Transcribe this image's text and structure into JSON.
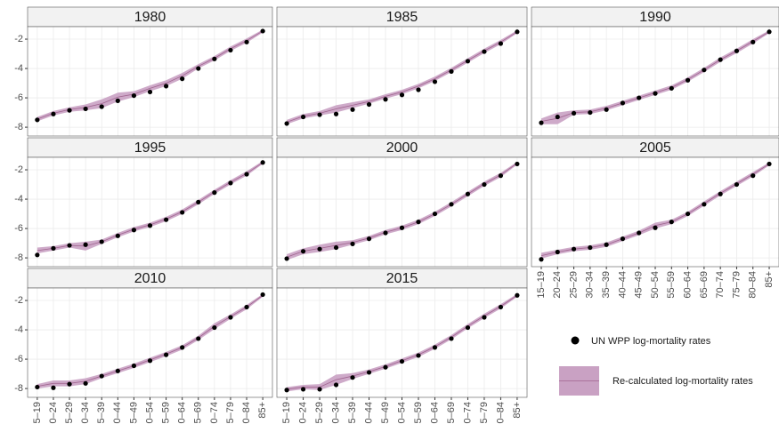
{
  "chart_data": {
    "type": "facet-band",
    "categories": [
      "15–19",
      "20–24",
      "25–29",
      "30–34",
      "35–39",
      "40–44",
      "45–49",
      "50–54",
      "55–59",
      "60–64",
      "65–69",
      "70–74",
      "75–79",
      "80–84",
      "85+"
    ],
    "ylim": [
      -8.6,
      -1.15
    ],
    "yticks": [
      -2,
      -4,
      -6,
      -8
    ],
    "grid": true,
    "legend": [
      {
        "name": "UN WPP log-mortality rates",
        "color": "#000000"
      },
      {
        "name": "Re-calculated log-mortality rates",
        "color": "#c9a1c3",
        "line_color": "#a0648f"
      }
    ],
    "facets": [
      {
        "title": "1980",
        "points": [
          -7.5,
          -7.1,
          -6.85,
          -6.75,
          -6.6,
          -6.2,
          -5.85,
          -5.6,
          -5.2,
          -4.7,
          -4.0,
          -3.35,
          -2.75,
          -2.2,
          -1.45
        ],
        "fit": [
          -7.45,
          -7.05,
          -6.8,
          -6.65,
          -6.4,
          -5.95,
          -5.75,
          -5.35,
          -5.0,
          -4.5,
          -3.85,
          -3.3,
          -2.65,
          -2.1,
          -1.45
        ],
        "lower": [
          -7.6,
          -7.2,
          -6.95,
          -6.85,
          -6.7,
          -6.25,
          -5.95,
          -5.55,
          -5.2,
          -4.7,
          -4.0,
          -3.45,
          -2.8,
          -2.25,
          -1.55
        ],
        "upper": [
          -7.3,
          -6.9,
          -6.65,
          -6.45,
          -6.1,
          -5.65,
          -5.55,
          -5.15,
          -4.8,
          -4.3,
          -3.7,
          -3.15,
          -2.5,
          -1.95,
          -1.35
        ]
      },
      {
        "title": "1985",
        "points": [
          -7.75,
          -7.3,
          -7.15,
          -7.1,
          -6.8,
          -6.45,
          -6.1,
          -5.8,
          -5.45,
          -4.9,
          -4.2,
          -3.5,
          -2.85,
          -2.3,
          -1.5
        ],
        "fit": [
          -7.65,
          -7.25,
          -7.05,
          -6.75,
          -6.5,
          -6.25,
          -5.9,
          -5.6,
          -5.2,
          -4.7,
          -4.1,
          -3.45,
          -2.8,
          -2.2,
          -1.5
        ],
        "lower": [
          -7.8,
          -7.4,
          -7.2,
          -7.0,
          -6.7,
          -6.4,
          -6.05,
          -5.75,
          -5.35,
          -4.85,
          -4.25,
          -3.6,
          -2.95,
          -2.35,
          -1.6
        ],
        "upper": [
          -7.5,
          -7.1,
          -6.9,
          -6.5,
          -6.3,
          -6.1,
          -5.75,
          -5.45,
          -5.05,
          -4.55,
          -3.95,
          -3.3,
          -2.65,
          -2.05,
          -1.4
        ]
      },
      {
        "title": "1990",
        "points": [
          -7.7,
          -7.3,
          -7.05,
          -7.0,
          -6.8,
          -6.35,
          -6.0,
          -5.7,
          -5.35,
          -4.8,
          -4.1,
          -3.4,
          -2.8,
          -2.2,
          -1.5
        ],
        "fit": [
          -7.6,
          -7.4,
          -7.0,
          -6.95,
          -6.7,
          -6.35,
          -6.0,
          -5.65,
          -5.3,
          -4.75,
          -4.1,
          -3.4,
          -2.8,
          -2.15,
          -1.5
        ],
        "lower": [
          -7.8,
          -7.8,
          -7.15,
          -7.1,
          -6.85,
          -6.5,
          -6.15,
          -5.8,
          -5.45,
          -4.9,
          -4.25,
          -3.55,
          -2.95,
          -2.3,
          -1.6
        ],
        "upper": [
          -7.4,
          -7.0,
          -6.85,
          -6.8,
          -6.55,
          -6.2,
          -5.85,
          -5.5,
          -5.15,
          -4.6,
          -3.95,
          -3.25,
          -2.65,
          -2.0,
          -1.4
        ]
      },
      {
        "title": "1995",
        "points": [
          -7.8,
          -7.35,
          -7.15,
          -7.1,
          -6.9,
          -6.5,
          -6.1,
          -5.8,
          -5.4,
          -4.9,
          -4.2,
          -3.55,
          -2.9,
          -2.3,
          -1.5
        ],
        "fit": [
          -7.5,
          -7.35,
          -7.15,
          -7.2,
          -6.9,
          -6.45,
          -6.05,
          -5.75,
          -5.35,
          -4.85,
          -4.2,
          -3.5,
          -2.85,
          -2.25,
          -1.5
        ],
        "lower": [
          -7.7,
          -7.5,
          -7.3,
          -7.5,
          -7.05,
          -6.6,
          -6.2,
          -5.9,
          -5.5,
          -5.0,
          -4.35,
          -3.65,
          -3.0,
          -2.4,
          -1.6
        ],
        "upper": [
          -7.3,
          -7.2,
          -7.0,
          -6.9,
          -6.75,
          -6.3,
          -5.9,
          -5.6,
          -5.2,
          -4.7,
          -4.05,
          -3.35,
          -2.7,
          -2.1,
          -1.4
        ]
      },
      {
        "title": "2000",
        "points": [
          -8.05,
          -7.55,
          -7.4,
          -7.3,
          -7.05,
          -6.7,
          -6.3,
          -5.95,
          -5.55,
          -5.0,
          -4.35,
          -3.65,
          -3.0,
          -2.4,
          -1.6
        ],
        "fit": [
          -7.95,
          -7.55,
          -7.35,
          -7.15,
          -6.95,
          -6.65,
          -6.25,
          -5.95,
          -5.55,
          -5.0,
          -4.35,
          -3.65,
          -2.95,
          -2.35,
          -1.55
        ],
        "lower": [
          -8.15,
          -7.75,
          -7.6,
          -7.4,
          -7.1,
          -6.8,
          -6.4,
          -6.1,
          -5.7,
          -5.15,
          -4.5,
          -3.8,
          -3.1,
          -2.5,
          -1.65
        ],
        "upper": [
          -7.75,
          -7.35,
          -7.1,
          -6.9,
          -6.8,
          -6.5,
          -6.1,
          -5.8,
          -5.4,
          -4.85,
          -4.2,
          -3.5,
          -2.8,
          -2.2,
          -1.45
        ]
      },
      {
        "title": "2005",
        "points": [
          -8.1,
          -7.6,
          -7.4,
          -7.3,
          -7.1,
          -6.7,
          -6.3,
          -5.95,
          -5.55,
          -5.0,
          -4.35,
          -3.65,
          -3.0,
          -2.4,
          -1.6
        ],
        "fit": [
          -7.85,
          -7.6,
          -7.4,
          -7.3,
          -7.1,
          -6.7,
          -6.3,
          -5.8,
          -5.55,
          -5.0,
          -4.3,
          -3.6,
          -2.95,
          -2.3,
          -1.6
        ],
        "lower": [
          -8.05,
          -7.75,
          -7.55,
          -7.45,
          -7.25,
          -6.85,
          -6.45,
          -6.0,
          -5.7,
          -5.15,
          -4.45,
          -3.75,
          -3.1,
          -2.45,
          -1.7
        ],
        "upper": [
          -7.65,
          -7.45,
          -7.25,
          -7.15,
          -6.95,
          -6.55,
          -6.15,
          -5.6,
          -5.4,
          -4.85,
          -4.15,
          -3.45,
          -2.8,
          -2.15,
          -1.5
        ]
      },
      {
        "title": "2010",
        "points": [
          -7.9,
          -7.95,
          -7.7,
          -7.65,
          -7.15,
          -6.8,
          -6.45,
          -6.1,
          -5.7,
          -5.2,
          -4.6,
          -3.85,
          -3.15,
          -2.45,
          -1.6
        ],
        "fit": [
          -7.85,
          -7.65,
          -7.65,
          -7.5,
          -7.15,
          -6.8,
          -6.45,
          -6.05,
          -5.65,
          -5.2,
          -4.55,
          -3.75,
          -3.1,
          -2.45,
          -1.65
        ],
        "lower": [
          -8.0,
          -7.85,
          -7.85,
          -7.7,
          -7.3,
          -6.95,
          -6.6,
          -6.2,
          -5.8,
          -5.35,
          -4.7,
          -3.95,
          -3.25,
          -2.6,
          -1.75
        ],
        "upper": [
          -7.7,
          -7.45,
          -7.45,
          -7.3,
          -7.0,
          -6.65,
          -6.3,
          -5.9,
          -5.5,
          -5.05,
          -4.4,
          -3.55,
          -2.95,
          -2.3,
          -1.55
        ]
      },
      {
        "title": "2015",
        "points": [
          -8.1,
          -8.05,
          -8.05,
          -7.75,
          -7.25,
          -6.9,
          -6.55,
          -6.15,
          -5.75,
          -5.2,
          -4.6,
          -3.85,
          -3.15,
          -2.45,
          -1.65
        ],
        "fit": [
          -8.05,
          -7.9,
          -7.9,
          -7.4,
          -7.15,
          -6.85,
          -6.5,
          -6.1,
          -5.7,
          -5.15,
          -4.5,
          -3.75,
          -3.05,
          -2.4,
          -1.65
        ],
        "lower": [
          -8.2,
          -8.05,
          -8.1,
          -7.75,
          -7.35,
          -7.0,
          -6.65,
          -6.25,
          -5.85,
          -5.3,
          -4.65,
          -3.9,
          -3.2,
          -2.55,
          -1.75
        ],
        "upper": [
          -7.9,
          -7.75,
          -7.7,
          -7.05,
          -6.95,
          -6.7,
          -6.35,
          -5.95,
          -5.55,
          -5.0,
          -4.35,
          -3.6,
          -2.9,
          -2.25,
          -1.55
        ]
      }
    ]
  }
}
